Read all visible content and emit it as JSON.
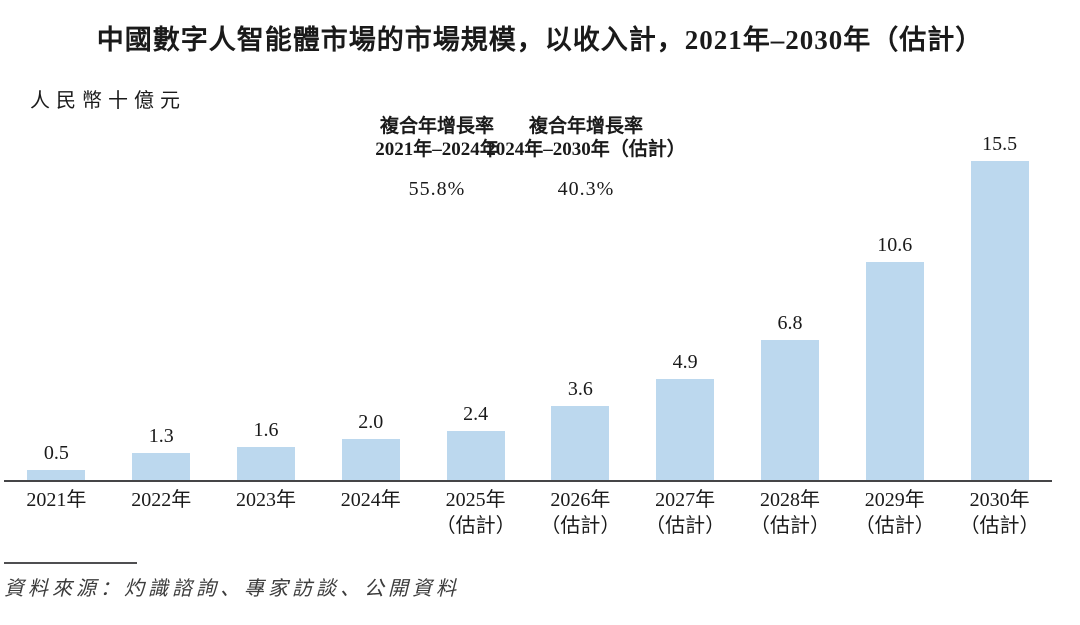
{
  "title": "中國數字人智能體市場的市場規模，以收入計，2021年–2030年（估計）",
  "unit_label": "人民幣十億元",
  "annotations": [
    {
      "title": "複合年增長率",
      "period": "2021年–2024年",
      "value": "55.8%"
    },
    {
      "title": "複合年增長率",
      "period": "2024年–2030年（估計）",
      "value": "40.3%"
    }
  ],
  "source": "資料來源：灼識諮詢、專家訪談、公開資料",
  "chart_data": {
    "type": "bar",
    "title": "中國數字人智能體市場的市場規模，以收入計，2021年–2030年（估計）",
    "ylabel": "人民幣十億元",
    "xlabel": "",
    "categories": [
      "2021年",
      "2022年",
      "2023年",
      "2024年",
      "2025年（估計）",
      "2026年（估計）",
      "2027年（估計）",
      "2028年（估計）",
      "2029年（估計）",
      "2030年（估計）"
    ],
    "values": [
      0.5,
      1.3,
      1.6,
      2.0,
      2.4,
      3.6,
      4.9,
      6.8,
      10.6,
      15.5
    ],
    "value_labels": [
      "0.5",
      "1.3",
      "1.6",
      "2.0",
      "2.4",
      "3.6",
      "4.9",
      "6.8",
      "10.6",
      "15.5"
    ],
    "bar_color": "#BCD8EE",
    "axis_color": "#454547",
    "text_color": "#1a1a1a",
    "ylim": [
      0,
      16
    ],
    "grid": false,
    "legend": false,
    "data_labels": "above-bars",
    "cagr_2021_2024": "55.8%",
    "cagr_2024_2030": "40.3%"
  }
}
